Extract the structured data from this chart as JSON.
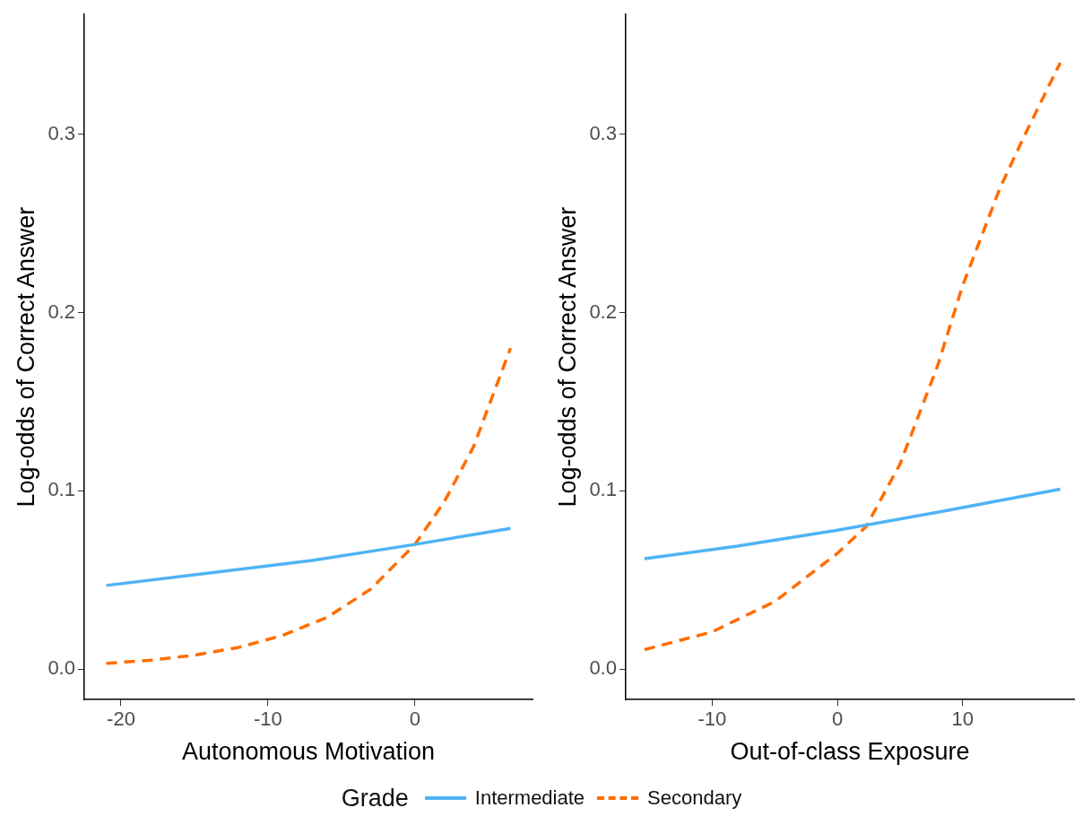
{
  "chart_data": [
    {
      "type": "line",
      "xlabel": "Autonomous Motivation",
      "ylabel": "Log-odds of Correct Answer",
      "legend_title": "Grade",
      "legend": "bottom",
      "grid": false,
      "marker": "none",
      "xlim": [
        -22.5,
        8
      ],
      "xticks": [
        -20,
        -10,
        0
      ],
      "ylim": [
        -0.017,
        0.367
      ],
      "yticks": [
        {
          "value": 0,
          "label": "0.0"
        },
        0.1,
        0.2,
        0.3
      ],
      "series": [
        {
          "name": "Intermediate",
          "color": "#4fb3f4",
          "line_style": "solid",
          "x": [
            -21,
            -14,
            -7,
            0,
            6.5
          ],
          "values": [
            0.047,
            0.054,
            0.061,
            0.07,
            0.079
          ]
        },
        {
          "name": "Secondary",
          "color": "#ff6d00",
          "line_style": "dashed",
          "x": [
            -21,
            -18,
            -15,
            -12,
            -9,
            -6,
            -3,
            0,
            2,
            4,
            6.5
          ],
          "values": [
            0.0033,
            0.0051,
            0.0079,
            0.0123,
            0.019,
            0.029,
            0.045,
            0.07,
            0.094,
            0.125,
            0.18
          ]
        }
      ]
    },
    {
      "type": "line",
      "xlabel": "Out-of-class Exposure",
      "ylabel": "Log-odds of Correct Answer",
      "grid": false,
      "marker": "none",
      "xlim": [
        -16.9,
        18.9
      ],
      "xticks": [
        -10,
        0,
        10
      ],
      "ylim": [
        -0.017,
        0.367
      ],
      "yticks": [
        {
          "value": 0,
          "label": "0.0"
        },
        0.1,
        0.2,
        0.3
      ],
      "series": [
        {
          "color": "#4fb3f4",
          "line_style": "solid",
          "x": [
            -15.4,
            -8,
            0,
            8,
            17.8
          ],
          "values": [
            0.062,
            0.069,
            0.078,
            0.088,
            0.101
          ]
        },
        {
          "color": "#ff6d00",
          "line_style": "dashed",
          "x": [
            -15.4,
            -10,
            -5,
            0,
            2.3,
            5,
            8,
            10,
            13,
            15,
            17.8
          ],
          "values": [
            0.011,
            0.021,
            0.038,
            0.065,
            0.08,
            0.115,
            0.17,
            0.215,
            0.27,
            0.3,
            0.34
          ]
        }
      ]
    }
  ]
}
